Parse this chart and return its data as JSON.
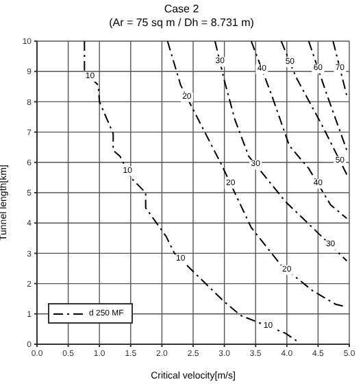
{
  "chart_data": {
    "type": "line",
    "title": "Case 2",
    "subtitle": "(Ar = 75 sq m / Dh = 8.731 m)",
    "xlabel": "Critical velocity[m/s]",
    "ylabel": "Tunnel length[km]",
    "series": [
      {
        "name": "d 250 MF",
        "color": "#000000",
        "x": [
          0.76,
          0.76,
          0.98,
          1.0,
          1.22,
          1.22,
          1.33,
          1.5,
          1.74,
          1.74,
          2.07,
          2.2,
          3.0,
          3.26,
          3.98,
          4.2
        ],
        "values": [
          10,
          9.0,
          8.55,
          8.0,
          6.95,
          6.4,
          6.2,
          5.5,
          5.0,
          4.5,
          3.55,
          3.0,
          1.4,
          0.95,
          0.36,
          0.05
        ]
      },
      {
        "color": "#000000",
        "x": [
          2.09,
          2.3,
          2.96,
          3.43,
          3.91,
          4.41,
          4.78,
          4.96
        ],
        "values": [
          10,
          8.55,
          5.9,
          3.85,
          2.6,
          1.77,
          1.32,
          1.23
        ]
      },
      {
        "color": "#000000",
        "x": [
          2.85,
          3.0,
          3.17,
          3.39,
          3.98,
          4.41,
          4.96
        ],
        "values": [
          10,
          8.7,
          7.4,
          6.2,
          4.7,
          3.85,
          2.75
        ]
      },
      {
        "color": "#000000",
        "x": [
          3.43,
          3.76,
          4.04,
          4.35,
          4.7,
          4.96
        ],
        "values": [
          10,
          8.2,
          6.55,
          5.8,
          4.6,
          4.15
        ]
      },
      {
        "color": "#000000",
        "x": [
          3.91,
          4.15,
          4.57,
          4.96
        ],
        "values": [
          10,
          8.8,
          7.2,
          5.6
        ]
      },
      {
        "color": "#000000",
        "x": [
          4.35,
          4.63,
          4.96
        ],
        "values": [
          10,
          8.3,
          6.4
        ]
      },
      {
        "color": "#000000",
        "x": [
          4.74,
          4.96
        ],
        "values": [
          10,
          8.2
        ]
      }
    ],
    "annotations": [
      {
        "text": "10",
        "x": 0.85,
        "y": 8.82
      },
      {
        "text": "10",
        "x": 1.45,
        "y": 5.71
      },
      {
        "text": "10",
        "x": 2.3,
        "y": 2.8
      },
      {
        "text": "10",
        "x": 3.7,
        "y": 0.59
      },
      {
        "text": "20",
        "x": 2.4,
        "y": 8.15
      },
      {
        "text": "20",
        "x": 3.1,
        "y": 5.29
      },
      {
        "text": "20",
        "x": 4.0,
        "y": 2.45
      },
      {
        "text": "30",
        "x": 2.93,
        "y": 9.31
      },
      {
        "text": "30",
        "x": 3.5,
        "y": 5.92
      },
      {
        "text": "30",
        "x": 4.7,
        "y": 3.27
      },
      {
        "text": "40",
        "x": 3.6,
        "y": 9.07
      },
      {
        "text": "40",
        "x": 4.5,
        "y": 5.29
      },
      {
        "text": "50",
        "x": 4.05,
        "y": 9.3
      },
      {
        "text": "50",
        "x": 4.85,
        "y": 6.05
      },
      {
        "text": "60",
        "x": 4.5,
        "y": 9.09
      },
      {
        "text": "70",
        "x": 4.85,
        "y": 9.1
      }
    ],
    "xlim": [
      0,
      5
    ],
    "xticks": [
      {
        "value": 0,
        "label": "0.0"
      },
      {
        "value": 0.5,
        "label": "0.5"
      },
      {
        "value": 1,
        "label": "1.0"
      },
      {
        "value": 1.5,
        "label": "1.5"
      },
      {
        "value": 2,
        "label": "2.0"
      },
      {
        "value": 2.5,
        "label": "2.5"
      },
      {
        "value": 3,
        "label": "3.0"
      },
      {
        "value": 3.5,
        "label": "3.5"
      },
      {
        "value": 4,
        "label": "4.0"
      },
      {
        "value": 4.5,
        "label": "4.5"
      },
      {
        "value": 5,
        "label": "5.0"
      }
    ],
    "ylim": [
      0,
      10
    ],
    "yticks": [
      0,
      1,
      2,
      3,
      4,
      5,
      6,
      7,
      8,
      9,
      10
    ],
    "grid": true,
    "legend": "bottom left",
    "line_style": "dashed",
    "marker": "none"
  }
}
